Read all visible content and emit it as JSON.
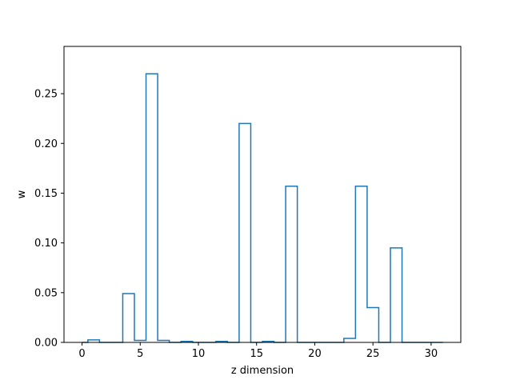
{
  "chart_data": {
    "type": "step",
    "title": "",
    "xlabel": "z dimension",
    "ylabel": "w",
    "xlim": [
      -1.55,
      32.55
    ],
    "ylim": [
      0,
      0.2975
    ],
    "xticks": [
      0,
      5,
      10,
      15,
      20,
      25,
      30
    ],
    "yticks": [
      0.0,
      0.05,
      0.1,
      0.15,
      0.2,
      0.25
    ],
    "xtick_labels": [
      "0",
      "5",
      "10",
      "15",
      "20",
      "25",
      "30"
    ],
    "ytick_labels": [
      "0.00",
      "0.05",
      "0.10",
      "0.15",
      "0.20",
      "0.25"
    ],
    "grid": false,
    "series_color": "#1f77b4",
    "x": [
      0,
      1,
      2,
      3,
      4,
      5,
      6,
      7,
      8,
      9,
      10,
      11,
      12,
      13,
      14,
      15,
      16,
      17,
      18,
      19,
      20,
      21,
      22,
      23,
      24,
      25,
      26,
      27,
      28,
      29,
      30,
      31
    ],
    "values": [
      0.0,
      0.0025,
      0.0,
      0.0,
      0.049,
      0.002,
      0.27,
      0.002,
      0.0,
      0.001,
      0.0,
      0.0,
      0.001,
      0.0,
      0.22,
      0.0,
      0.001,
      0.0,
      0.157,
      0.0,
      0.0,
      0.0,
      0.0,
      0.004,
      0.157,
      0.035,
      0.0,
      0.095,
      0.0,
      0.0,
      0.0,
      0.0
    ]
  }
}
